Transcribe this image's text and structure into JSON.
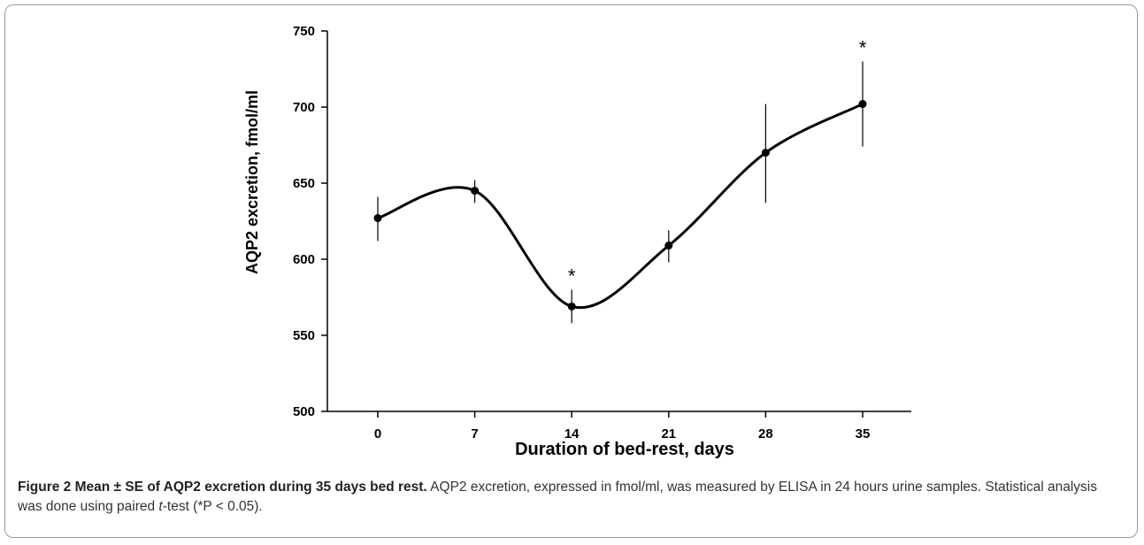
{
  "chart_data": {
    "type": "line",
    "xlabel": "Duration of bed-rest, days",
    "ylabel": "AQP2 excretion, fmol/ml",
    "x": [
      0,
      7,
      14,
      21,
      28,
      35
    ],
    "x_ticks": [
      "0",
      "7",
      "14",
      "21",
      "28",
      "35"
    ],
    "y_ticks": [
      "500",
      "550",
      "600",
      "650",
      "700",
      "750"
    ],
    "ylim": [
      500,
      750
    ],
    "series": [
      {
        "values": [
          627,
          645,
          569,
          609,
          670,
          702
        ],
        "error_low": [
          612,
          637,
          558,
          598,
          637,
          674
        ],
        "error_high": [
          641,
          652,
          580,
          619,
          702,
          730
        ],
        "significance": [
          "",
          "",
          "*",
          "",
          "",
          "*"
        ]
      }
    ],
    "grid": false,
    "smooth": true
  },
  "caption": {
    "label": "Figure 2 Mean ± SE of AQP2 excretion during 35 days bed rest.",
    "text_1": " AQP2 excretion, expressed in fmol/ml, was measured by ELISA in 24 hours urine samples. Statistical analysis was done using paired ",
    "italic": "t",
    "text_2": "-test (*P < 0.05)."
  }
}
